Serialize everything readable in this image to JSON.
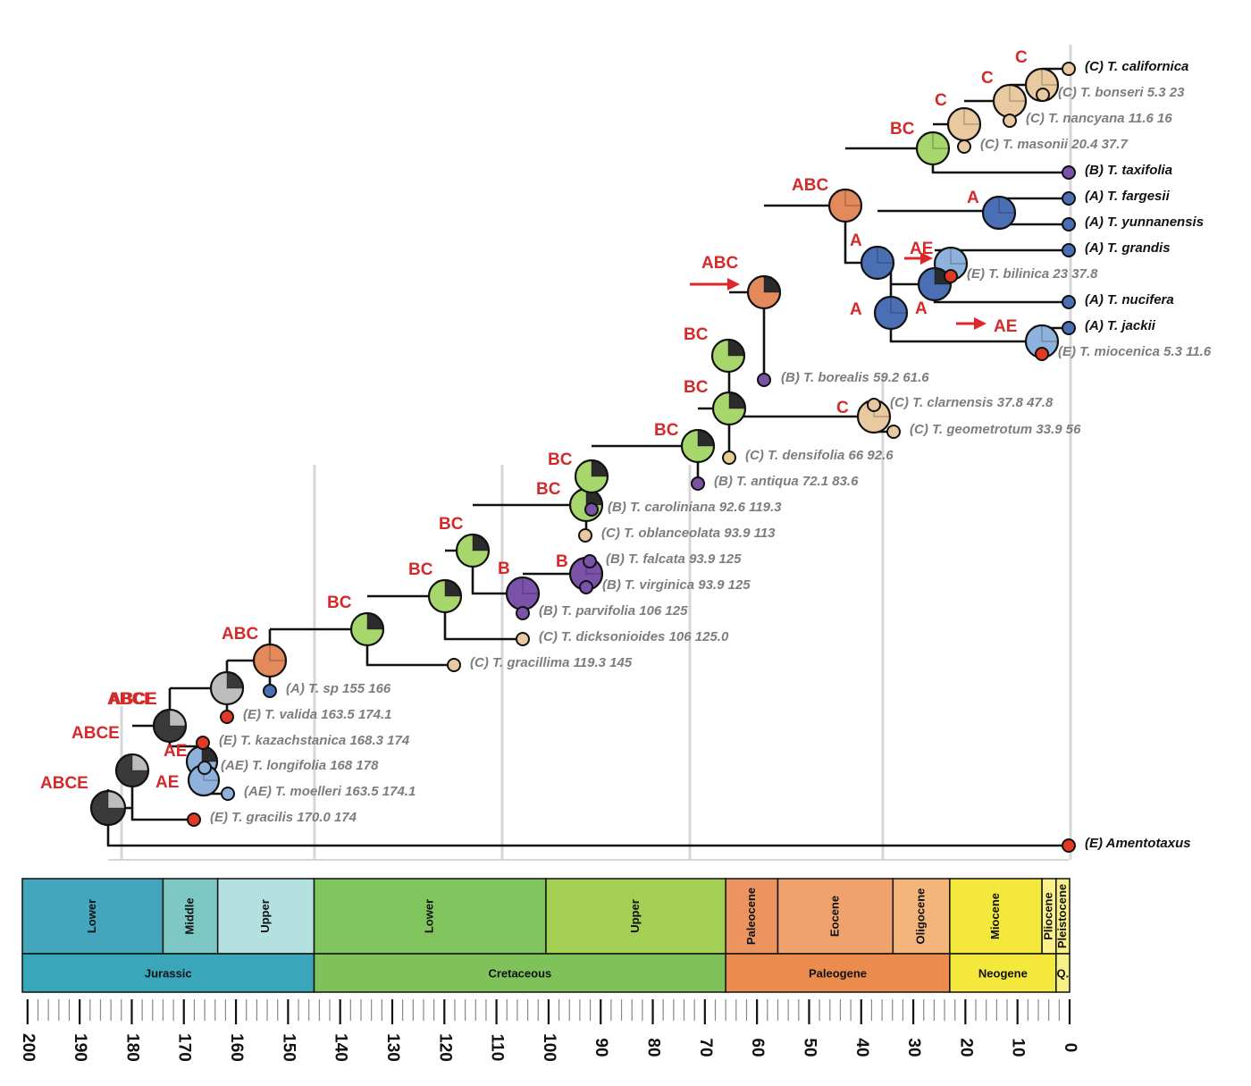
{
  "figure": {
    "area_colors": {
      "A": "#4a6fb5",
      "B": "#7a52a8",
      "C": "#e9c99f",
      "E": "#e13a22",
      "AE": "#8fb2dc",
      "BC": "#a6d66c",
      "ABC": "#e38a5c",
      "ABCE": "#3a3a3a",
      "dark": "#2b2b2b",
      "grey": "#bdbdbd",
      "label_red": "#d42a2a",
      "arrow_red": "#e0262b"
    },
    "tips": [
      {
        "id": "californica",
        "text": "(C) T. californica",
        "area": "C",
        "fossil": false
      },
      {
        "id": "bonseri",
        "text": "(C) T. bonseri 5.3 23",
        "area": "C",
        "fossil": true
      },
      {
        "id": "nancyana",
        "text": "(C) T. nancyana 11.6 16",
        "area": "C",
        "fossil": true
      },
      {
        "id": "masonii",
        "text": "(C) T. masonii 20.4 37.7",
        "area": "C",
        "fossil": true
      },
      {
        "id": "taxifolia",
        "text": "(B) T. taxifolia",
        "area": "B",
        "fossil": false
      },
      {
        "id": "fargesii",
        "text": "(A) T. fargesii",
        "area": "A",
        "fossil": false
      },
      {
        "id": "yunnanensis",
        "text": "(A) T. yunnanensis",
        "area": "A",
        "fossil": false
      },
      {
        "id": "grandis",
        "text": "(A) T. grandis",
        "area": "A",
        "fossil": false
      },
      {
        "id": "bilinica",
        "text": "(E) T. bilinica 23 37.8",
        "area": "E",
        "fossil": true
      },
      {
        "id": "nucifera",
        "text": "(A) T. nucifera",
        "area": "A",
        "fossil": false
      },
      {
        "id": "jackii",
        "text": "(A) T. jackii",
        "area": "A",
        "fossil": false
      },
      {
        "id": "miocenica",
        "text": "(E) T. miocenica 5.3 11.6",
        "area": "E",
        "fossil": true
      },
      {
        "id": "borealis",
        "text": "(B) T. borealis 59.2 61.6",
        "area": "B",
        "fossil": true
      },
      {
        "id": "clarnensis",
        "text": "(C) T. clarnensis 37.8 47.8",
        "area": "C",
        "fossil": true
      },
      {
        "id": "geometrotum",
        "text": "(C) T. geometrotum 33.9 56",
        "area": "C",
        "fossil": true
      },
      {
        "id": "densifolia",
        "text": "(C) T. densifolia 66 92.6",
        "area": "C",
        "fossil": true
      },
      {
        "id": "antiqua",
        "text": "(B) T. antiqua 72.1 83.6",
        "area": "B",
        "fossil": true
      },
      {
        "id": "caroliniana",
        "text": "(B) T. caroliniana 92.6 119.3",
        "area": "B",
        "fossil": true
      },
      {
        "id": "oblanceolata",
        "text": "(C) T. oblanceolata 93.9 113",
        "area": "C",
        "fossil": true
      },
      {
        "id": "falcata",
        "text": "(B) T. falcata 93.9 125",
        "area": "B",
        "fossil": true
      },
      {
        "id": "virginica",
        "text": "(B) T. virginica 93.9 125",
        "area": "B",
        "fossil": true
      },
      {
        "id": "parvifolia",
        "text": "(B) T. parvifolia 106 125",
        "area": "B",
        "fossil": true
      },
      {
        "id": "dicksonioides",
        "text": "(C) T. dicksonioides 106 125.0",
        "area": "C",
        "fossil": true
      },
      {
        "id": "gracillima",
        "text": "(C) T. gracillima 119.3 145",
        "area": "C",
        "fossil": true
      },
      {
        "id": "sp",
        "text": "(A) T. sp 155 166",
        "area": "A",
        "fossil": true
      },
      {
        "id": "valida",
        "text": "(E) T. valida 163.5 174.1",
        "area": "E",
        "fossil": true
      },
      {
        "id": "kazachstanica",
        "text": "(E) T. kazachstanica 168.3 174",
        "area": "E",
        "fossil": true
      },
      {
        "id": "longifolia",
        "text": "(AE) T. longifolia 168 178",
        "area": "AE",
        "fossil": true
      },
      {
        "id": "moelleri",
        "text": "(AE) T. moelleri 163.5 174.1",
        "area": "AE",
        "fossil": true
      },
      {
        "id": "gracilis",
        "text": "(E) T. gracilis 170.0 174",
        "area": "E",
        "fossil": true
      },
      {
        "id": "amentotaxus",
        "text": "(E) Amentotaxus",
        "area": "E",
        "fossil": false
      }
    ],
    "nodes": [
      {
        "id": "n_root",
        "area_label": "ABCE",
        "main": "ABCE",
        "second": "grey"
      },
      {
        "id": "n_abce2",
        "area_label": "ABCE",
        "main": "ABCE",
        "second": "grey"
      },
      {
        "id": "n_abce3",
        "area_label": "ABCE",
        "main": "ABCE",
        "second": "grey"
      },
      {
        "id": "n_ae1",
        "area_label": "AE",
        "main": "AE",
        "second": "dark"
      },
      {
        "id": "n_ae2",
        "area_label": "AE",
        "main": "AE",
        "second": "AE"
      },
      {
        "id": "n_abce4",
        "area_label": "ABCE",
        "main": "grey",
        "second": "ABCE"
      },
      {
        "id": "n_abc1",
        "area_label": "ABC",
        "main": "ABC",
        "second": "ABC"
      },
      {
        "id": "n_bc1",
        "area_label": "BC",
        "main": "BC",
        "second": "dark"
      },
      {
        "id": "n_bc2",
        "area_label": "BC",
        "main": "BC",
        "second": "dark"
      },
      {
        "id": "n_bc3",
        "area_label": "BC",
        "main": "BC",
        "second": "dark"
      },
      {
        "id": "n_b1",
        "area_label": "B",
        "main": "B",
        "second": "B"
      },
      {
        "id": "n_b2",
        "area_label": "B",
        "main": "B",
        "second": "B"
      },
      {
        "id": "n_bc4",
        "area_label": "BC",
        "main": "BC",
        "second": "dark"
      },
      {
        "id": "n_bc5",
        "area_label": "BC",
        "main": "BC",
        "second": "dark"
      },
      {
        "id": "n_bc6",
        "area_label": "BC",
        "main": "BC",
        "second": "dark"
      },
      {
        "id": "n_bc7",
        "area_label": "BC",
        "main": "BC",
        "second": "dark"
      },
      {
        "id": "n_bc8",
        "area_label": "BC",
        "main": "BC",
        "second": "dark"
      },
      {
        "id": "n_c_clar",
        "area_label": "C",
        "main": "C",
        "second": "C"
      },
      {
        "id": "n_abc2",
        "area_label": "ABC",
        "main": "ABC",
        "second": "dark"
      },
      {
        "id": "n_abc3",
        "area_label": "ABC",
        "main": "ABC",
        "second": "ABC"
      },
      {
        "id": "n_bc9",
        "area_label": "BC",
        "main": "BC",
        "second": "BC"
      },
      {
        "id": "n_c1",
        "area_label": "C",
        "main": "C",
        "second": "C"
      },
      {
        "id": "n_c2",
        "area_label": "C",
        "main": "C",
        "second": "C"
      },
      {
        "id": "n_c3",
        "area_label": "C",
        "main": "C",
        "second": "C"
      },
      {
        "id": "n_a1",
        "area_label": "A",
        "main": "A",
        "second": "A"
      },
      {
        "id": "n_a2",
        "area_label": "A",
        "main": "A",
        "second": "A"
      },
      {
        "id": "n_a3",
        "area_label": "A",
        "main": "A",
        "second": "A"
      },
      {
        "id": "n_ae3",
        "area_label": "AE",
        "main": "AE",
        "second": "AE"
      },
      {
        "id": "n_a4",
        "area_label": "A",
        "main": "A",
        "second": "dark"
      },
      {
        "id": "n_ae4",
        "area_label": "AE",
        "main": "AE",
        "second": "AE"
      }
    ],
    "timescale": {
      "periods": [
        {
          "label": "Jurassic",
          "from": 201,
          "to": 145,
          "color": "#3aa6b9"
        },
        {
          "label": "Cretaceous",
          "from": 145,
          "to": 66,
          "color": "#7fc25a"
        },
        {
          "label": "Paleogene",
          "from": 66,
          "to": 23,
          "color": "#eb8c4e"
        },
        {
          "label": "Neogene",
          "from": 23,
          "to": 2.6,
          "color": "#f4e83c"
        },
        {
          "label": "Q.",
          "from": 2.6,
          "to": 0,
          "color": "#f7f08a"
        }
      ],
      "epochs": [
        {
          "label": "Lower",
          "from": 201,
          "to": 174,
          "color": "#43a6bd"
        },
        {
          "label": "Middle",
          "from": 174,
          "to": 163.5,
          "color": "#7dc7c4"
        },
        {
          "label": "Upper",
          "from": 163.5,
          "to": 145,
          "color": "#b4e0e0"
        },
        {
          "label": "Lower",
          "from": 145,
          "to": 100.5,
          "color": "#80c45d"
        },
        {
          "label": "Upper",
          "from": 100.5,
          "to": 66,
          "color": "#a3cf55"
        },
        {
          "label": "Paleocene",
          "from": 66,
          "to": 56,
          "color": "#eb9460"
        },
        {
          "label": "Eocene",
          "from": 56,
          "to": 33.9,
          "color": "#f0a26c"
        },
        {
          "label": "Oligocene",
          "from": 33.9,
          "to": 23,
          "color": "#f4b57a"
        },
        {
          "label": "Miocene",
          "from": 23,
          "to": 5.3,
          "color": "#f4e83c"
        },
        {
          "label": "Pliocene",
          "from": 5.3,
          "to": 2.6,
          "color": "#fbf089"
        },
        {
          "label": "Pleistocene",
          "from": 2.6,
          "to": 0,
          "color": "#f7f08a"
        }
      ],
      "ticks": [
        200,
        190,
        180,
        170,
        160,
        150,
        140,
        130,
        120,
        110,
        100,
        90,
        80,
        70,
        60,
        50,
        40,
        30,
        20,
        10,
        0
      ],
      "gridlines": [
        182,
        145,
        109,
        73,
        36,
        0
      ]
    }
  }
}
